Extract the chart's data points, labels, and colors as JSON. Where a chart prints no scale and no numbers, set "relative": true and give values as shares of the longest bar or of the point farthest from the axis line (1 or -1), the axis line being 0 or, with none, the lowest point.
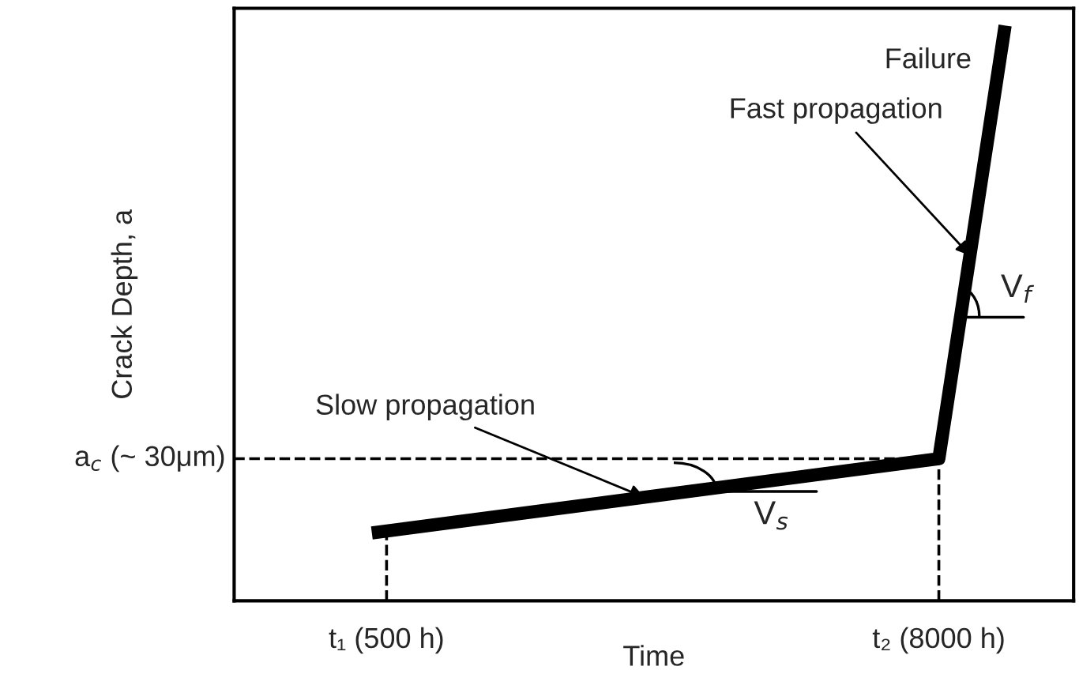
{
  "chart_data": {
    "type": "line",
    "relative": true,
    "xlabel": "Time",
    "ylabel": "Crack Depth, a",
    "x": [
      300,
      8000,
      8900
    ],
    "series": [
      {
        "color": "#000000",
        "values": [
          0.118,
          0.247,
          1
        ]
      }
    ],
    "xlim": [
      -1570,
      9830
    ],
    "xticks": [
      {
        "value": 500,
        "label": "t₁ (500 h)"
      },
      {
        "value": 8000,
        "label": "t₂ (8000 h)"
      }
    ],
    "ref_lines": [
      {
        "axis": "y",
        "value": 0.247,
        "label": "a$_{c}$ (~ 30μm)",
        "line_style": "dashed",
        "color": "#000000"
      },
      {
        "axis": "x",
        "value": 500,
        "line_style": "dashed",
        "color": "#000000"
      },
      {
        "axis": "x",
        "value": 8000,
        "line_style": "dashed",
        "color": "#000000"
      }
    ],
    "annotations": [
      "Failure",
      {
        "text": "Fast propagation",
        "x": 8426,
        "y": 0.6
      },
      {
        "text": "V$_{f}$",
        "x": 8294,
        "y": 0.493
      },
      {
        "text": "Slow propagation",
        "x": 4000,
        "y": 0.18
      },
      {
        "text": "V$_{s}$",
        "x": 4400,
        "y": 0.19
      }
    ],
    "grid": false,
    "legend": false,
    "marker": "none",
    "line_style": "solid"
  }
}
